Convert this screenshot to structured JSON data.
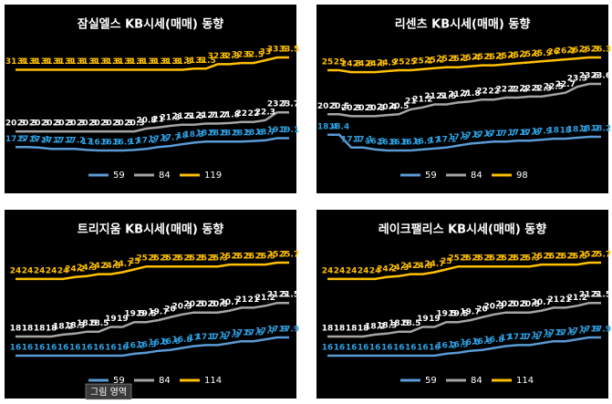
{
  "chart_data": [
    {
      "type": "line",
      "title": "잠실엘스 KB시세(매매) 동향",
      "series": [
        {
          "name": "59",
          "color": "#5b9bd5",
          "label_color": "#2e9fe0",
          "values": [
            17.5,
            17.5,
            17.4,
            17.2,
            17.2,
            17.2,
            17.0,
            16.9,
            16.9,
            16.9,
            17.0,
            17.2,
            17.5,
            17.7,
            18.0,
            18.3,
            18.5,
            18.5,
            18.5,
            18.5,
            18.6,
            18.7,
            19.1,
            19.1
          ]
        },
        {
          "name": "84",
          "color": "#a5a5a5",
          "label_color": "#ffffff",
          "values": [
            20.3,
            20.3,
            20.3,
            20.3,
            20.3,
            20.3,
            20.3,
            20.3,
            20.3,
            20.3,
            20.3,
            20.8,
            21.0,
            21.3,
            21.5,
            21.5,
            21.7,
            21.7,
            21.8,
            22.0,
            22.0,
            22.3,
            23.7,
            23.7
          ]
        },
        {
          "name": "119",
          "color": "#ffc000",
          "label_color": "#ffc000",
          "values": [
            31.3,
            31.3,
            31.3,
            31.3,
            31.3,
            31.3,
            31.3,
            31.3,
            31.3,
            31.3,
            31.3,
            31.3,
            31.3,
            31.3,
            31.3,
            31.5,
            31.5,
            32.3,
            32.3,
            32.5,
            32.5,
            33.0,
            33.5,
            33.5
          ]
        }
      ]
    },
    {
      "type": "line",
      "title": "리센츠 KB시세(매매) 동향",
      "series": [
        {
          "name": "59",
          "color": "#5b9bd5",
          "label_color": "#2e9fe0",
          "values": [
            18.4,
            18.4,
            17.1,
            17.1,
            16.9,
            16.8,
            16.8,
            16.8,
            16.9,
            17.0,
            17.1,
            17.3,
            17.5,
            17.6,
            17.7,
            17.7,
            17.8,
            17.8,
            17.9,
            18.0,
            18.0,
            18.1,
            18.2,
            18.2
          ]
        },
        {
          "name": "84",
          "color": "#a5a5a5",
          "label_color": "#ffffff",
          "values": [
            20.5,
            20.5,
            20.3,
            20.3,
            20.3,
            20.4,
            20.5,
            21.0,
            21.2,
            21.5,
            21.5,
            21.7,
            21.8,
            22.0,
            22.0,
            22.2,
            22.2,
            22.3,
            22.3,
            22.5,
            22.7,
            23.3,
            23.6,
            23.6
          ]
        },
        {
          "name": "98",
          "color": "#ffc000",
          "label_color": "#ffc000",
          "values": [
            25.0,
            25.0,
            24.8,
            24.8,
            24.8,
            24.9,
            25.0,
            25.0,
            25.1,
            25.2,
            25.3,
            25.3,
            25.4,
            25.5,
            25.5,
            25.6,
            25.7,
            25.8,
            25.9,
            26.0,
            26.1,
            26.2,
            26.3,
            26.3
          ]
        }
      ]
    },
    {
      "type": "line",
      "title": "트리지움 KB시세(매매) 동향",
      "series": [
        {
          "name": "59",
          "color": "#5b9bd5",
          "label_color": "#2e9fe0",
          "values": [
            16.0,
            16.0,
            16.0,
            16.0,
            16.0,
            16.0,
            16.0,
            16.0,
            16.0,
            16.0,
            16.2,
            16.3,
            16.5,
            16.6,
            16.8,
            17.0,
            17.1,
            17.1,
            17.3,
            17.5,
            17.5,
            17.7,
            17.9,
            17.9
          ]
        },
        {
          "name": "84",
          "color": "#a5a5a5",
          "label_color": "#ffffff",
          "values": [
            18.0,
            18.0,
            18.0,
            18.0,
            18.2,
            18.3,
            18.5,
            18.5,
            19.0,
            19.0,
            19.5,
            19.5,
            19.7,
            20.0,
            20.3,
            20.5,
            20.5,
            20.5,
            20.7,
            21.0,
            21.0,
            21.2,
            21.5,
            21.5
          ]
        },
        {
          "name": "114",
          "color": "#ffc000",
          "label_color": "#ffc000",
          "values": [
            24.0,
            24.0,
            24.0,
            24.0,
            24.0,
            24.2,
            24.3,
            24.5,
            24.5,
            24.7,
            25.0,
            25.3,
            25.3,
            25.3,
            25.3,
            25.3,
            25.3,
            25.3,
            25.5,
            25.5,
            25.5,
            25.5,
            25.7,
            25.7
          ]
        }
      ]
    },
    {
      "type": "line",
      "title": "레이크팰리스 KB시세(매매) 동향",
      "series": [
        {
          "name": "59",
          "color": "#5b9bd5",
          "label_color": "#2e9fe0",
          "values": [
            16.0,
            16.0,
            16.0,
            16.0,
            16.0,
            16.0,
            16.0,
            16.0,
            16.0,
            16.0,
            16.2,
            16.3,
            16.5,
            16.6,
            16.8,
            17.0,
            17.1,
            17.1,
            17.3,
            17.5,
            17.5,
            17.7,
            17.9,
            17.9
          ]
        },
        {
          "name": "84",
          "color": "#a5a5a5",
          "label_color": "#ffffff",
          "values": [
            18.0,
            18.0,
            18.0,
            18.0,
            18.2,
            18.3,
            18.5,
            18.5,
            19.0,
            19.0,
            19.5,
            19.5,
            19.7,
            20.0,
            20.3,
            20.5,
            20.5,
            20.5,
            20.7,
            21.0,
            21.0,
            21.2,
            21.5,
            21.5
          ]
        },
        {
          "name": "114",
          "color": "#ffc000",
          "label_color": "#ffc000",
          "values": [
            24.0,
            24.0,
            24.0,
            24.0,
            24.0,
            24.2,
            24.3,
            24.5,
            24.5,
            24.7,
            25.0,
            25.3,
            25.3,
            25.3,
            25.3,
            25.3,
            25.3,
            25.3,
            25.5,
            25.5,
            25.5,
            25.5,
            25.7,
            25.7
          ]
        }
      ]
    }
  ],
  "tooltip": "그림 영역"
}
